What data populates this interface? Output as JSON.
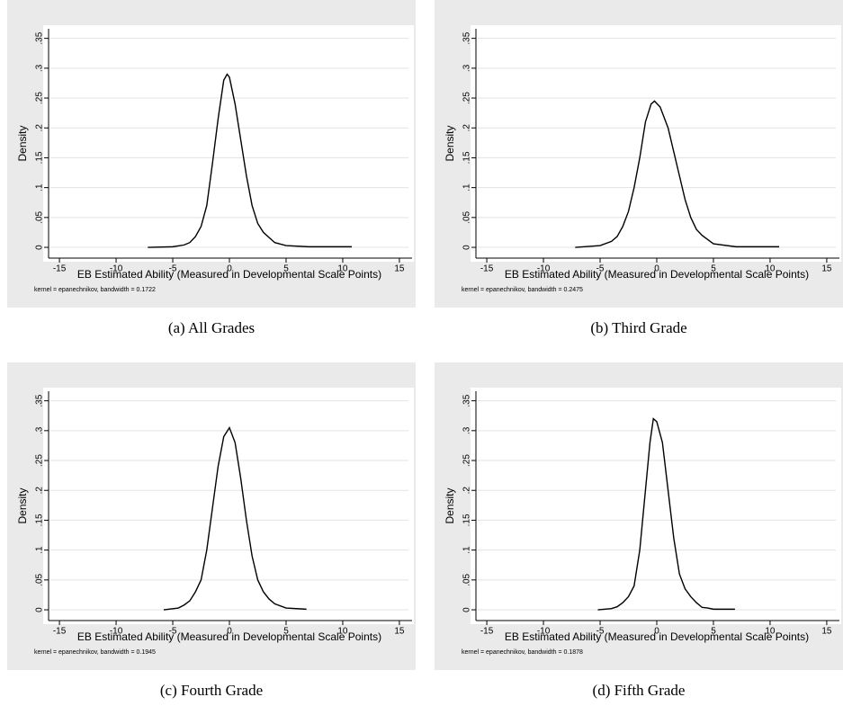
{
  "chart_data": [
    {
      "type": "line",
      "caption": "(a) All Grades",
      "xlabel": "EB Estimated Ability (Measured in Developmental Scale Points)",
      "ylabel": "Density",
      "note": "kernel = epanechnikov, bandwidth = 0.1722",
      "x": [
        -7.2,
        -5,
        -4,
        -3.5,
        -3,
        -2.5,
        -2,
        -1.5,
        -1,
        -0.5,
        -0.2,
        0,
        0.5,
        1,
        1.5,
        2,
        2.5,
        3,
        4,
        5,
        7,
        10.8
      ],
      "values": [
        0,
        0.001,
        0.004,
        0.008,
        0.018,
        0.035,
        0.07,
        0.14,
        0.215,
        0.28,
        0.29,
        0.285,
        0.24,
        0.18,
        0.12,
        0.07,
        0.04,
        0.025,
        0.008,
        0.003,
        0.001,
        0.001
      ],
      "color": "#000000",
      "xlim": [
        -15.8,
        15.8
      ],
      "xticks": [
        -15,
        -10,
        -5,
        0,
        5,
        10,
        15
      ],
      "ylim": [
        -0.012,
        0.36
      ],
      "yticks": [
        0,
        {
          "value": 0.05,
          "label": ".05"
        },
        {
          "value": 0.1,
          "label": ".1"
        },
        {
          "value": 0.15,
          "label": ".15"
        },
        {
          "value": 0.2,
          "label": ".2"
        },
        {
          "value": 0.25,
          "label": ".25"
        },
        {
          "value": 0.3,
          "label": ".3"
        },
        {
          "value": 0.35,
          "label": ".35"
        }
      ],
      "grid": true
    },
    {
      "type": "line",
      "caption": "(b) Third Grade",
      "xlabel": "EB Estimated Ability (Measured in Developmental Scale Points)",
      "ylabel": "Density",
      "note": "kernel = epanechnikov, bandwidth = 0.2475",
      "x": [
        -7.2,
        -5,
        -4,
        -3.5,
        -3,
        -2.5,
        -2,
        -1.5,
        -1,
        -0.5,
        -0.2,
        0.3,
        1,
        1.5,
        2,
        2.5,
        3,
        3.5,
        4,
        5,
        7,
        10.8
      ],
      "values": [
        0,
        0.003,
        0.01,
        0.018,
        0.035,
        0.06,
        0.1,
        0.15,
        0.21,
        0.24,
        0.245,
        0.235,
        0.2,
        0.16,
        0.12,
        0.08,
        0.05,
        0.03,
        0.02,
        0.006,
        0.001,
        0.001
      ],
      "color": "#000000",
      "xlim": [
        -15.8,
        15.8
      ],
      "xticks": [
        -15,
        -10,
        -5,
        0,
        5,
        10,
        15
      ],
      "ylim": [
        -0.012,
        0.36
      ],
      "yticks": [
        0,
        {
          "value": 0.05,
          "label": ".05"
        },
        {
          "value": 0.1,
          "label": ".1"
        },
        {
          "value": 0.15,
          "label": ".15"
        },
        {
          "value": 0.2,
          "label": ".2"
        },
        {
          "value": 0.25,
          "label": ".25"
        },
        {
          "value": 0.3,
          "label": ".3"
        },
        {
          "value": 0.35,
          "label": ".35"
        }
      ],
      "grid": true
    },
    {
      "type": "line",
      "caption": "(c)  Fourth Grade",
      "xlabel": "EB Estimated Ability (Measured in Developmental Scale Points)",
      "ylabel": "Density",
      "note": "kernel = epanechnikov, bandwidth = 0.1945",
      "x": [
        -5.8,
        -4.5,
        -4,
        -3.5,
        -3,
        -2.5,
        -2,
        -1.5,
        -1,
        -0.5,
        0,
        0.5,
        1,
        1.5,
        2,
        2.5,
        3,
        3.5,
        4,
        5,
        6.8
      ],
      "values": [
        0,
        0.003,
        0.008,
        0.015,
        0.03,
        0.05,
        0.1,
        0.17,
        0.24,
        0.29,
        0.305,
        0.28,
        0.22,
        0.15,
        0.09,
        0.05,
        0.03,
        0.018,
        0.01,
        0.003,
        0.001
      ],
      "color": "#000000",
      "xlim": [
        -15.8,
        15.8
      ],
      "xticks": [
        -15,
        -10,
        -5,
        0,
        5,
        10,
        15
      ],
      "ylim": [
        -0.012,
        0.36
      ],
      "yticks": [
        0,
        {
          "value": 0.05,
          "label": ".05"
        },
        {
          "value": 0.1,
          "label": ".1"
        },
        {
          "value": 0.15,
          "label": ".15"
        },
        {
          "value": 0.2,
          "label": ".2"
        },
        {
          "value": 0.25,
          "label": ".25"
        },
        {
          "value": 0.3,
          "label": ".3"
        },
        {
          "value": 0.35,
          "label": ".35"
        }
      ],
      "grid": true
    },
    {
      "type": "line",
      "caption": "(d)  Fifth Grade",
      "xlabel": "EB Estimated Ability (Measured in Developmental Scale Points)",
      "ylabel": "Density",
      "note": "kernel = epanechnikov, bandwidth = 0.1878",
      "x": [
        -5.2,
        -4,
        -3.5,
        -3,
        -2.5,
        -2,
        -1.5,
        -1,
        -0.6,
        -0.3,
        0,
        0.5,
        1,
        1.5,
        2,
        2.5,
        3,
        3.5,
        4,
        4.5,
        5,
        6.9
      ],
      "values": [
        0,
        0.002,
        0.005,
        0.012,
        0.022,
        0.04,
        0.1,
        0.2,
        0.28,
        0.32,
        0.315,
        0.28,
        0.2,
        0.12,
        0.06,
        0.035,
        0.022,
        0.012,
        0.004,
        0.003,
        0.001,
        0.001
      ],
      "color": "#000000",
      "xlim": [
        -15.8,
        15.8
      ],
      "xticks": [
        -15,
        -10,
        -5,
        0,
        5,
        10,
        15
      ],
      "ylim": [
        -0.012,
        0.36
      ],
      "yticks": [
        0,
        {
          "value": 0.05,
          "label": ".05"
        },
        {
          "value": 0.1,
          "label": ".1"
        },
        {
          "value": 0.15,
          "label": ".15"
        },
        {
          "value": 0.2,
          "label": ".2"
        },
        {
          "value": 0.25,
          "label": ".25"
        },
        {
          "value": 0.3,
          "label": ".3"
        },
        {
          "value": 0.35,
          "label": ".35"
        }
      ],
      "grid": true
    }
  ]
}
